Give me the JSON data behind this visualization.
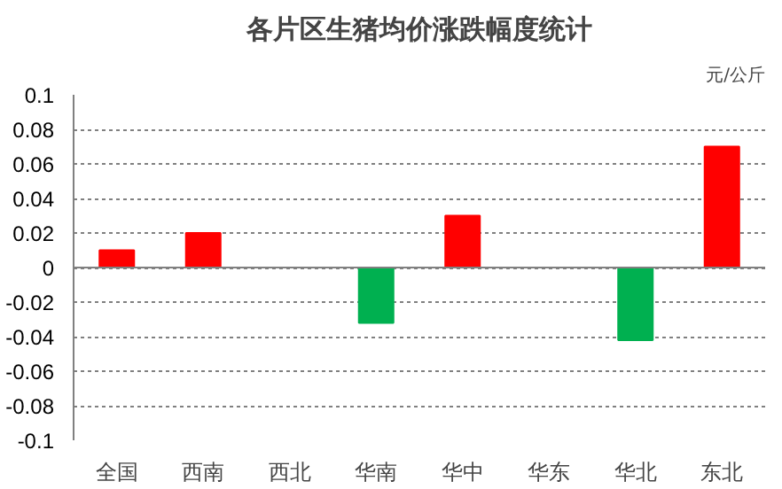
{
  "chart_data": {
    "type": "bar",
    "title": "各片区生猪均价涨跌幅度统计",
    "annotations": [
      "元/公斤"
    ],
    "categories": [
      "全国",
      "西南",
      "西北",
      "华南",
      "华中",
      "华东",
      "华北",
      "东北"
    ],
    "values": [
      0.01,
      0.02,
      0,
      -0.032,
      0.03,
      0,
      -0.042,
      0.07
    ],
    "colors": [
      "#ff0000",
      "#ff0000",
      "#ff0000",
      "#00b050",
      "#ff0000",
      "#ff0000",
      "#00b050",
      "#ff0000"
    ],
    "ylim": [
      -0.1,
      0.1
    ],
    "yticks": [
      -0.1,
      -0.08,
      -0.06,
      -0.04,
      -0.02,
      0,
      0.02,
      0.04,
      0.06,
      0.08,
      0.1
    ],
    "grid": "y"
  }
}
